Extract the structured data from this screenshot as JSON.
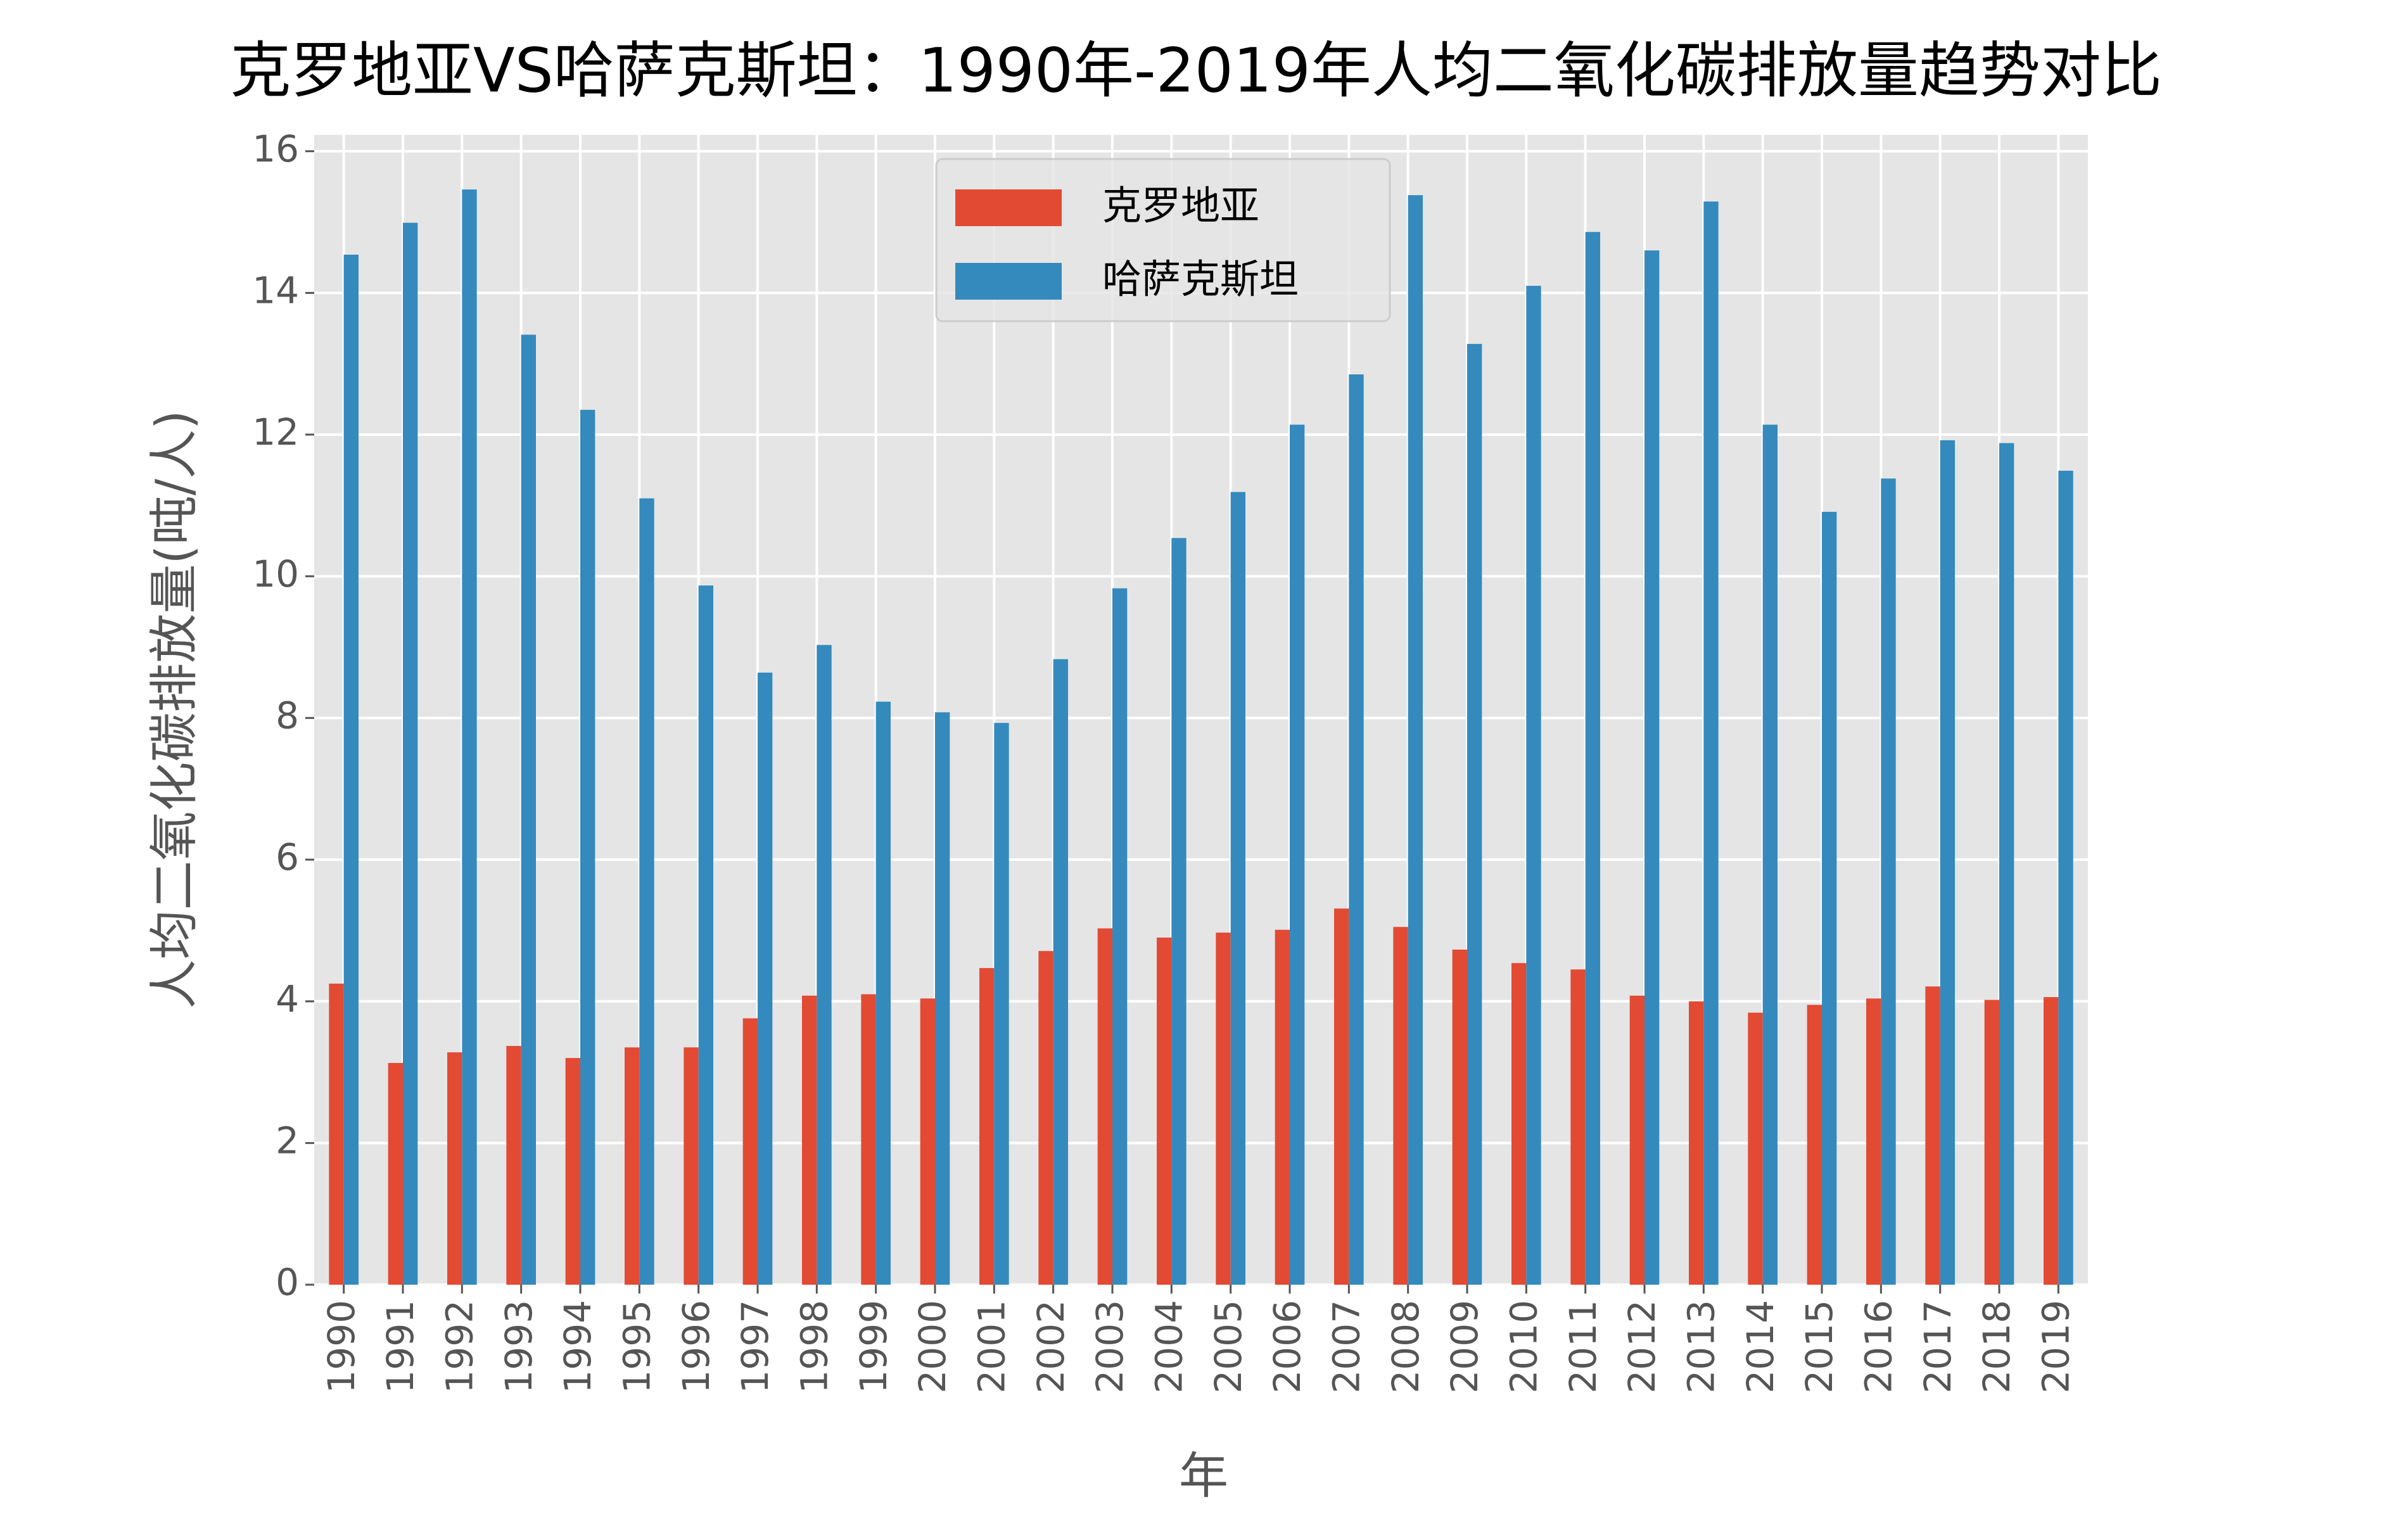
{
  "chart_data": {
    "type": "bar",
    "title": "克罗地亚VS哈萨克斯坦：1990年-2019年人均二氧化碳排放量趋势对比",
    "xlabel": "年",
    "ylabel": "人均二氧化碳排放量(吨/人)",
    "categories": [
      "1990",
      "1991",
      "1992",
      "1993",
      "1994",
      "1995",
      "1996",
      "1997",
      "1998",
      "1999",
      "2000",
      "2001",
      "2002",
      "2003",
      "2004",
      "2005",
      "2006",
      "2007",
      "2008",
      "2009",
      "2010",
      "2011",
      "2012",
      "2013",
      "2014",
      "2015",
      "2016",
      "2017",
      "2018",
      "2019"
    ],
    "series": [
      {
        "name": "克罗地亚",
        "color": "#e24a33",
        "values": [
          4.25,
          3.13,
          3.28,
          3.37,
          3.2,
          3.35,
          3.35,
          3.76,
          4.08,
          4.1,
          4.04,
          4.47,
          4.71,
          5.03,
          4.9,
          4.97,
          5.01,
          5.31,
          5.05,
          4.73,
          4.54,
          4.45,
          4.08,
          4.0,
          3.84,
          3.95,
          4.04,
          4.21,
          4.02,
          4.06
        ]
      },
      {
        "name": "哈萨克斯坦",
        "color": "#348abd",
        "values": [
          14.54,
          14.99,
          15.46,
          13.41,
          12.35,
          11.1,
          9.87,
          8.64,
          9.03,
          8.23,
          8.08,
          7.93,
          8.83,
          9.83,
          10.54,
          11.19,
          12.14,
          12.85,
          15.38,
          13.28,
          14.1,
          14.86,
          14.6,
          15.29,
          12.14,
          10.91,
          11.38,
          11.92,
          11.88,
          11.49
        ]
      }
    ],
    "ylim": [
      0,
      16.23
    ],
    "yticks": [
      0,
      2,
      4,
      6,
      8,
      10,
      12,
      14,
      16
    ],
    "grid": true,
    "legend": "upper center"
  }
}
